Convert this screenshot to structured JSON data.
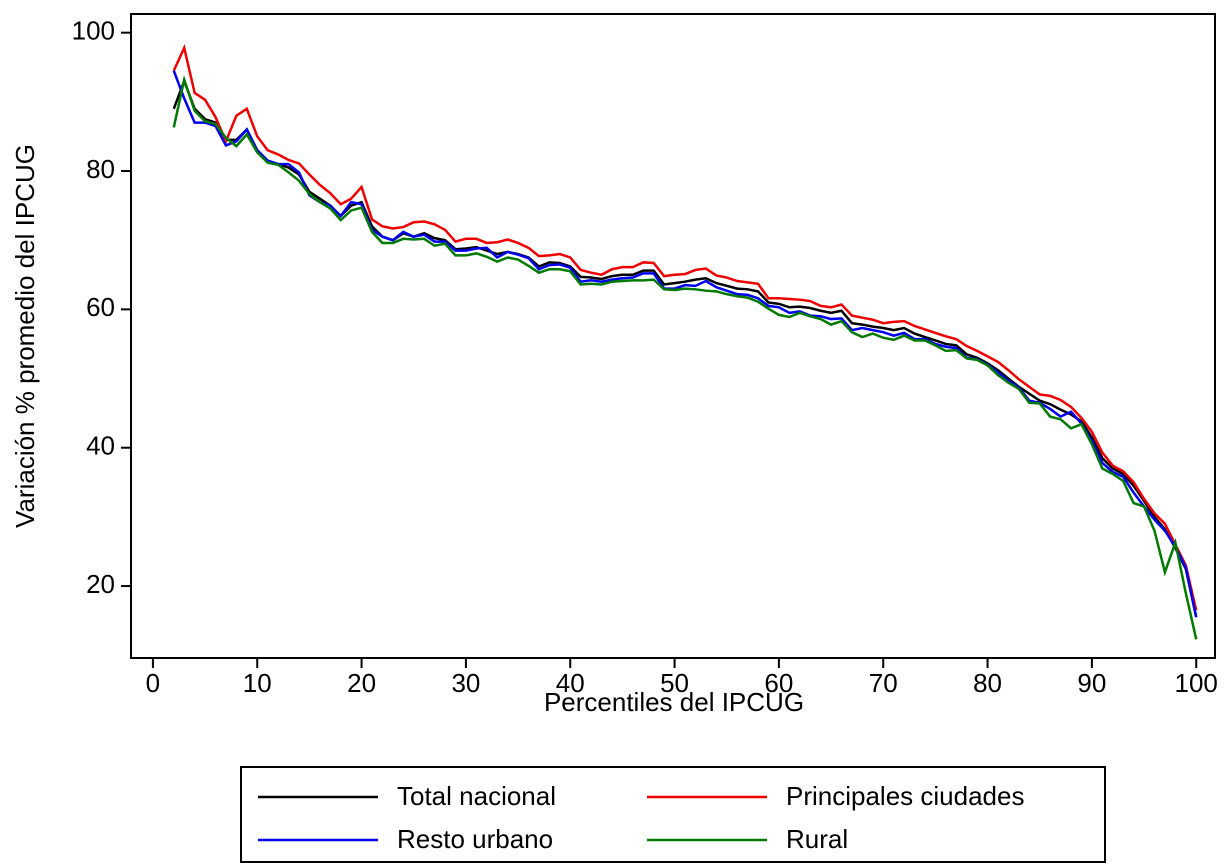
{
  "chart_data": {
    "type": "line",
    "x_label": "Percentiles del IPCUG",
    "y_label": "Variación % promedio del IPCUG",
    "xlim": [
      -2.1,
      101.8
    ],
    "ylim": [
      9.6,
      102.7
    ],
    "xticks": [
      0,
      10,
      20,
      30,
      40,
      50,
      60,
      70,
      80,
      90,
      100
    ],
    "yticks": [
      20,
      40,
      60,
      80,
      100
    ],
    "grid": false,
    "legend": "bottom",
    "x": [
      2,
      3,
      4,
      5,
      6,
      7,
      8,
      9,
      10,
      11,
      12,
      13,
      14,
      15,
      16,
      17,
      18,
      19,
      20,
      21,
      22,
      23,
      24,
      25,
      26,
      27,
      28,
      29,
      30,
      31,
      32,
      33,
      34,
      35,
      36,
      37,
      38,
      39,
      40,
      41,
      42,
      43,
      44,
      45,
      46,
      47,
      48,
      49,
      50,
      51,
      52,
      53,
      54,
      55,
      56,
      57,
      58,
      59,
      60,
      61,
      62,
      63,
      64,
      65,
      66,
      67,
      68,
      69,
      70,
      71,
      72,
      73,
      74,
      75,
      76,
      77,
      78,
      79,
      80,
      81,
      82,
      83,
      84,
      85,
      86,
      87,
      88,
      89,
      90,
      91,
      92,
      93,
      94,
      95,
      96,
      97,
      98,
      99,
      100
    ],
    "series": [
      {
        "name": "Total nacional",
        "color": "#000000",
        "values": [
          89,
          93,
          89,
          87.5,
          87,
          84.5,
          84.5,
          86,
          83,
          81.5,
          81,
          80.5,
          79.5,
          77,
          76,
          75,
          73.5,
          75,
          75.5,
          72,
          70.5,
          70,
          71,
          70.5,
          71,
          70.3,
          70,
          68.7,
          68.8,
          69,
          68.5,
          68,
          68.3,
          68,
          67.5,
          66.2,
          66.8,
          66.7,
          66.2,
          64.7,
          64.6,
          64.4,
          64.8,
          65,
          65,
          65.6,
          65.6,
          63.6,
          63.8,
          64,
          64.3,
          64.5,
          63.8,
          63.4,
          63,
          62.9,
          62.6,
          61,
          60.8,
          60.3,
          60.4,
          60.2,
          59.8,
          59.5,
          59.8,
          58,
          57.8,
          57.5,
          57.3,
          57,
          57.3,
          56.5,
          56,
          55.5,
          55,
          54.8,
          53.5,
          53,
          52.2,
          51.2,
          50,
          48.8,
          47.8,
          46.8,
          46.3,
          45.5,
          44.8,
          43.8,
          41.5,
          38.5,
          37,
          36.2,
          34.5,
          32.3,
          30,
          28.2,
          25.5,
          22.5,
          15.5
        ]
      },
      {
        "name": "Principales ciudades",
        "color": "#ee0000",
        "values": [
          94.5,
          97.8,
          91.3,
          90.3,
          87.8,
          84.3,
          88,
          89,
          85,
          83,
          82.4,
          81.6,
          81.1,
          79.5,
          78,
          76.8,
          75.2,
          76,
          77.7,
          73,
          72,
          71.7,
          71.9,
          72.6,
          72.7,
          72.3,
          71.5,
          69.8,
          70.2,
          70.2,
          69.6,
          69.7,
          70.1,
          69.6,
          68.9,
          67.7,
          67.8,
          68,
          67.5,
          65.7,
          65.3,
          65,
          65.8,
          66.1,
          66.1,
          66.8,
          66.7,
          64.8,
          65,
          65.1,
          65.7,
          65.9,
          64.9,
          64.6,
          64.1,
          63.9,
          63.7,
          61.6,
          61.6,
          61.5,
          61.4,
          61.2,
          60.5,
          60.3,
          60.7,
          59.1,
          58.8,
          58.5,
          58,
          58.2,
          58.3,
          57.6,
          57.1,
          56.6,
          56.1,
          55.7,
          54.7,
          54,
          53.2,
          52.4,
          51.2,
          49.9,
          48.8,
          47.7,
          47.5,
          46.9,
          45.9,
          44.3,
          42.3,
          39.3,
          37.4,
          36.6,
          35,
          32.6,
          30.5,
          29,
          26,
          23,
          16.5
        ]
      },
      {
        "name": "Resto urbano",
        "color": "#0000ee",
        "values": [
          94.5,
          90.5,
          87,
          87,
          86.5,
          83.7,
          84.3,
          86,
          83,
          81.5,
          81,
          81,
          79.8,
          76.5,
          75.5,
          75,
          73.5,
          75.5,
          75.2,
          71.5,
          70.5,
          70,
          71.2,
          70.5,
          70.8,
          69.8,
          69.8,
          68.5,
          68.5,
          68.8,
          68.9,
          67.5,
          68.3,
          67.9,
          67.4,
          65.8,
          66.4,
          66.5,
          66,
          64,
          64.2,
          64,
          64.3,
          64.5,
          64.6,
          65.2,
          65.2,
          63,
          63,
          63.5,
          63.4,
          64.1,
          63.2,
          62.7,
          62.2,
          62.1,
          61.6,
          60.5,
          60.3,
          59.5,
          59.7,
          59.1,
          59,
          58.6,
          58.7,
          57,
          57.3,
          57,
          56.7,
          56.2,
          56.6,
          55.7,
          55.7,
          55,
          54.6,
          54.4,
          53,
          52.8,
          52,
          50.9,
          49.7,
          48.7,
          46.8,
          46.5,
          45.6,
          44.5,
          45.2,
          43.5,
          41,
          37.8,
          36.5,
          35.8,
          33.5,
          31.5,
          29.6,
          28,
          25.7,
          22.7,
          15.5
        ]
      },
      {
        "name": "Rural",
        "color": "#007a00",
        "values": [
          86.3,
          93.2,
          88.7,
          87.2,
          86.8,
          84.8,
          83.6,
          85.3,
          82.7,
          81.2,
          80.9,
          79.8,
          78.6,
          76.7,
          75.5,
          74.6,
          72.9,
          74.3,
          74.7,
          71.2,
          69.6,
          69.6,
          70.2,
          70.1,
          70.2,
          69.2,
          69.5,
          67.8,
          67.8,
          68.1,
          67.6,
          66.9,
          67.5,
          67.2,
          66.3,
          65.3,
          65.8,
          65.8,
          65.5,
          63.6,
          63.7,
          63.6,
          64,
          64.1,
          64.2,
          64.2,
          64.3,
          62.9,
          62.8,
          63,
          62.9,
          62.7,
          62.6,
          62.2,
          61.9,
          61.7,
          61.1,
          60.1,
          59.2,
          58.9,
          59.5,
          59,
          58.6,
          57.8,
          58.3,
          56.7,
          56,
          56.5,
          55.9,
          55.6,
          56.2,
          55.5,
          55.5,
          54.8,
          54,
          54.1,
          52.9,
          52.7,
          51.9,
          50.5,
          49.4,
          48.5,
          46.5,
          46.4,
          44.5,
          44.1,
          42.8,
          43.4,
          40.5,
          37,
          36.2,
          35.2,
          32,
          31.5,
          28,
          22,
          26.3,
          19,
          12.3
        ]
      }
    ]
  }
}
